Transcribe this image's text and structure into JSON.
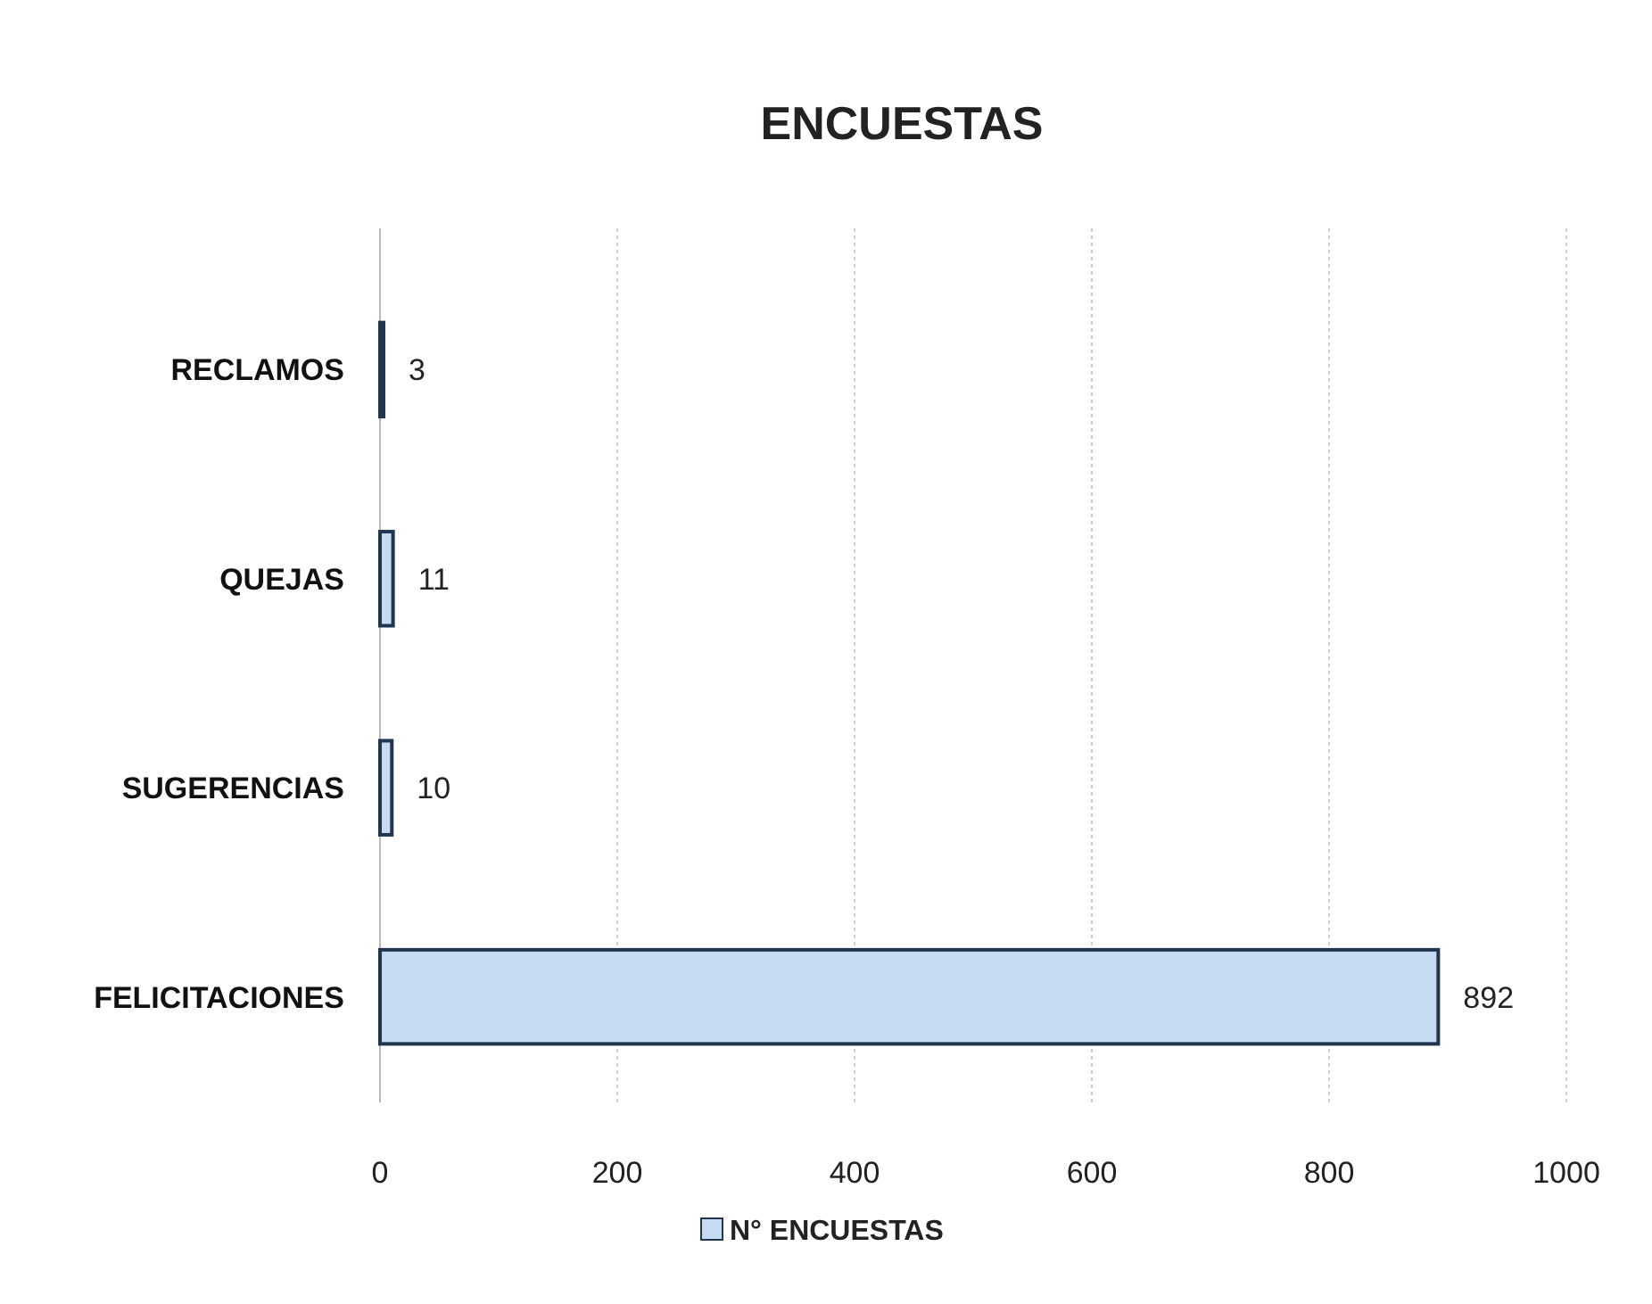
{
  "chart_data": {
    "type": "bar",
    "orientation": "horizontal",
    "title": "ENCUESTAS",
    "categories": [
      "RECLAMOS",
      "QUEJAS",
      "SUGERENCIAS",
      "FELICITACIONES"
    ],
    "series": [
      {
        "name": "N° ENCUESTAS",
        "color": "#c6dbef",
        "values": [
          3,
          11,
          10,
          892
        ]
      }
    ],
    "xlim": [
      0,
      1000
    ],
    "xticks": [
      0,
      200,
      400,
      600,
      800,
      1000
    ],
    "grid": "x",
    "legend": "bottom",
    "data_labels": true
  }
}
